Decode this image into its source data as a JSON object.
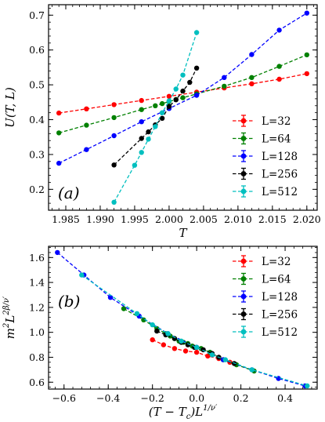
{
  "chart_data": [
    {
      "type": "line",
      "panel_label": "(a)",
      "xlabel": "T",
      "ylabel": "U(T, L)",
      "xlim": [
        1.9825,
        2.0215
      ],
      "ylim": [
        0.14,
        0.73
      ],
      "xticks": [
        1.985,
        1.99,
        1.995,
        2.0,
        2.005,
        2.01,
        2.015,
        2.02
      ],
      "xtick_labels": [
        "1.985",
        "1.990",
        "1.995",
        "2.000",
        "2.005",
        "2.010",
        "2.015",
        "2.020"
      ],
      "yticks": [
        0.2,
        0.3,
        0.4,
        0.5,
        0.6,
        0.7
      ],
      "ytick_labels": [
        "0.2",
        "0.3",
        "0.4",
        "0.5",
        "0.6",
        "0.7"
      ],
      "legend_position": "lower-right",
      "series": [
        {
          "name": "L=32",
          "color": "#ff0000",
          "x": [
            1.984,
            1.988,
            1.992,
            1.996,
            2.0,
            2.004,
            2.008,
            2.012,
            2.016,
            2.02
          ],
          "y": [
            0.419,
            0.431,
            0.443,
            0.455,
            0.467,
            0.479,
            0.491,
            0.503,
            0.516,
            0.532
          ]
        },
        {
          "name": "L=64",
          "color": "#008000",
          "x": [
            1.984,
            1.988,
            1.992,
            1.996,
            1.998,
            1.999,
            2.0,
            2.001,
            2.002,
            2.004,
            2.008,
            2.012,
            2.016,
            2.02
          ],
          "y": [
            0.362,
            0.384,
            0.406,
            0.429,
            0.44,
            0.446,
            0.452,
            0.458,
            0.463,
            0.474,
            0.496,
            0.521,
            0.553,
            0.586
          ]
        },
        {
          "name": "L=128",
          "color": "#0000ff",
          "x": [
            1.984,
            1.988,
            1.992,
            1.996,
            2.0,
            2.004,
            2.008,
            2.012,
            2.016,
            2.02
          ],
          "y": [
            0.275,
            0.314,
            0.354,
            0.394,
            0.432,
            0.47,
            0.521,
            0.587,
            0.657,
            0.706
          ]
        },
        {
          "name": "L=256",
          "color": "#000000",
          "x": [
            1.992,
            1.996,
            1.997,
            1.998,
            1.999,
            2.0,
            2.001,
            2.002,
            2.003,
            2.004
          ],
          "y": [
            0.27,
            0.346,
            0.365,
            0.385,
            0.404,
            0.438,
            0.457,
            0.482,
            0.507,
            0.548
          ]
        },
        {
          "name": "L=512",
          "color": "#00bfbf",
          "x": [
            1.992,
            1.995,
            1.996,
            1.997,
            1.998,
            1.999,
            2.0,
            2.001,
            2.002,
            2.004
          ],
          "y": [
            0.163,
            0.269,
            0.306,
            0.344,
            0.38,
            0.42,
            0.454,
            0.488,
            0.528,
            0.65
          ]
        }
      ]
    },
    {
      "type": "line",
      "panel_label": "(b)",
      "xlabel": "(T − T_c)L^{1/ν'}",
      "ylabel": "m²L^{2β/ν'}",
      "xlim": [
        -0.67,
        0.545
      ],
      "ylim": [
        0.545,
        1.69
      ],
      "xticks": [
        -0.6,
        -0.4,
        -0.2,
        0.0,
        0.2,
        0.4
      ],
      "xtick_labels": [
        "−0.6",
        "−0.4",
        "−0.2",
        "0.0",
        "0.2",
        "0.4"
      ],
      "yticks": [
        0.6,
        0.8,
        1.0,
        1.2,
        1.4,
        1.6
      ],
      "ytick_labels": [
        "0.6",
        "0.8",
        "1.0",
        "1.2",
        "1.4",
        "1.6"
      ],
      "legend_position": "upper-right",
      "series": [
        {
          "name": "L=32",
          "color": "#ff0000",
          "x": [
            -0.2,
            -0.15,
            -0.1,
            -0.05,
            0.0,
            0.05,
            0.1,
            0.15
          ],
          "y": [
            0.94,
            0.9,
            0.87,
            0.85,
            0.84,
            0.81,
            0.79,
            0.76
          ]
        },
        {
          "name": "L=64",
          "color": "#008000",
          "x": [
            -0.33,
            -0.24,
            -0.18,
            -0.14,
            -0.12,
            -0.1,
            -0.08,
            -0.06,
            -0.04,
            -0.02,
            0.0,
            0.02,
            0.06,
            0.12,
            0.18,
            0.26
          ],
          "y": [
            1.19,
            1.1,
            1.03,
            0.99,
            0.97,
            0.95,
            0.93,
            0.92,
            0.91,
            0.89,
            0.88,
            0.87,
            0.84,
            0.78,
            0.74,
            0.69
          ]
        },
        {
          "name": "L=128",
          "color": "#0000ff",
          "x": [
            -0.63,
            -0.51,
            -0.39,
            -0.26,
            -0.13,
            0.0,
            0.12,
            0.25,
            0.37,
            0.49
          ],
          "y": [
            1.64,
            1.46,
            1.28,
            1.13,
            0.99,
            0.88,
            0.78,
            0.7,
            0.63,
            0.57
          ]
        },
        {
          "name": "L=256",
          "color": "#000000",
          "x": [
            -0.18,
            -0.14,
            -0.1,
            -0.07,
            -0.04,
            -0.01,
            0.03,
            0.07,
            0.1,
            0.17
          ],
          "y": [
            1.01,
            0.98,
            0.95,
            0.92,
            0.9,
            0.88,
            0.86,
            0.83,
            0.8,
            0.75
          ]
        },
        {
          "name": "L=512",
          "color": "#00bfbf",
          "x": [
            -0.52,
            -0.27,
            -0.2,
            -0.13,
            -0.07,
            0.0,
            0.07,
            0.13,
            0.25,
            0.5
          ],
          "y": [
            1.46,
            1.15,
            1.06,
            0.99,
            0.93,
            0.88,
            0.82,
            0.78,
            0.7,
            0.57
          ]
        }
      ]
    }
  ]
}
